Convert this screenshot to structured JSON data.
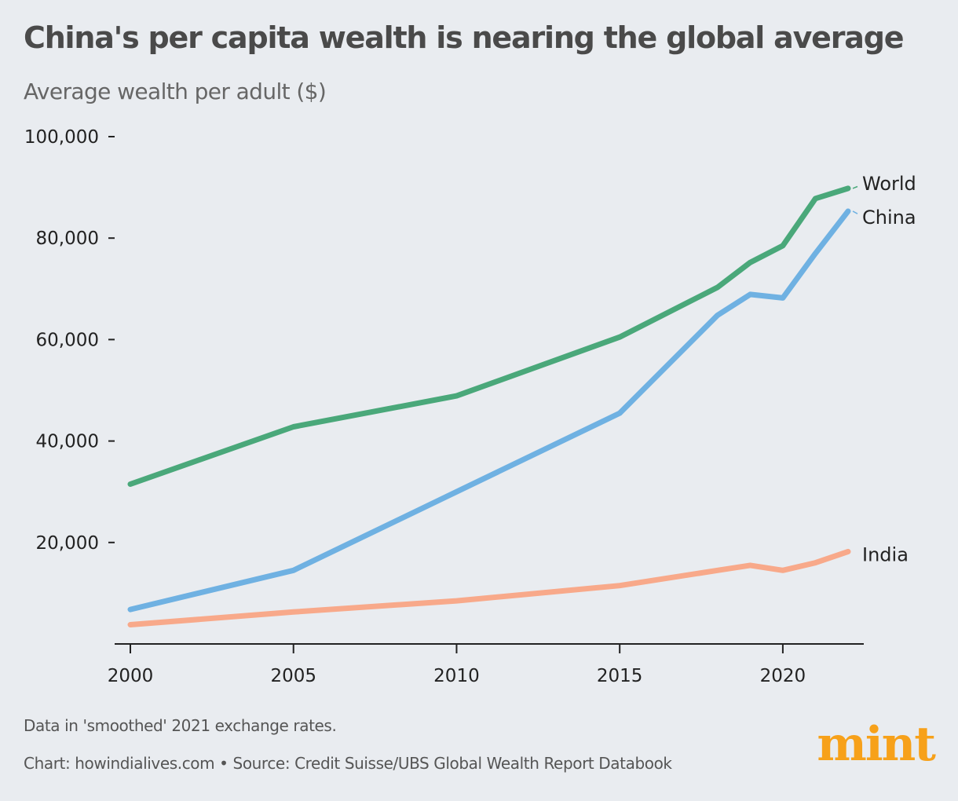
{
  "header": {
    "title": "China's per capita wealth is nearing the global average",
    "subtitle": "Average wealth per adult ($)"
  },
  "footer": {
    "note": "Data in 'smoothed' 2021 exchange rates.",
    "source": "Chart: howindialives.com • Source: Credit Suisse/UBS Global Wealth Report Databook",
    "logo": "mint"
  },
  "colors": {
    "world": "#4aa87a",
    "china": "#6fb1e2",
    "india": "#f8a98a",
    "logo": "#f7a11a"
  },
  "chart_data": {
    "type": "line",
    "title": "China's per capita wealth is nearing the global average",
    "subtitle": "Average wealth per adult ($)",
    "xlabel": "",
    "ylabel": "",
    "xlim": [
      2000,
      2022
    ],
    "ylim": [
      0,
      100000
    ],
    "x_ticks": [
      2000,
      2005,
      2010,
      2015,
      2020
    ],
    "x_tick_labels": [
      "2000",
      "2005",
      "2010",
      "2015",
      "2020"
    ],
    "y_ticks": [
      20000,
      40000,
      60000,
      80000,
      100000
    ],
    "y_tick_labels": [
      "20,000",
      "40,000",
      "60,000",
      "80,000",
      "100,000"
    ],
    "grid": false,
    "legend": "direct labels at line ends (right)",
    "series": [
      {
        "name": "World",
        "color": "#4aa87a",
        "x": [
          2000,
          2005,
          2010,
          2015,
          2018,
          2019,
          2020,
          2021,
          2022
        ],
        "y": [
          31500,
          42800,
          48900,
          60500,
          70300,
          75200,
          78500,
          87800,
          89800
        ]
      },
      {
        "name": "China",
        "color": "#6fb1e2",
        "x": [
          2000,
          2005,
          2010,
          2015,
          2018,
          2019,
          2020,
          2021,
          2022
        ],
        "y": [
          6800,
          14500,
          30000,
          45500,
          64800,
          68900,
          68200,
          77000,
          85300
        ]
      },
      {
        "name": "India",
        "color": "#f8a98a",
        "x": [
          2000,
          2005,
          2010,
          2015,
          2018,
          2019,
          2020,
          2021,
          2022
        ],
        "y": [
          3800,
          6300,
          8500,
          11500,
          14500,
          15500,
          14500,
          16000,
          18200
        ]
      }
    ]
  }
}
